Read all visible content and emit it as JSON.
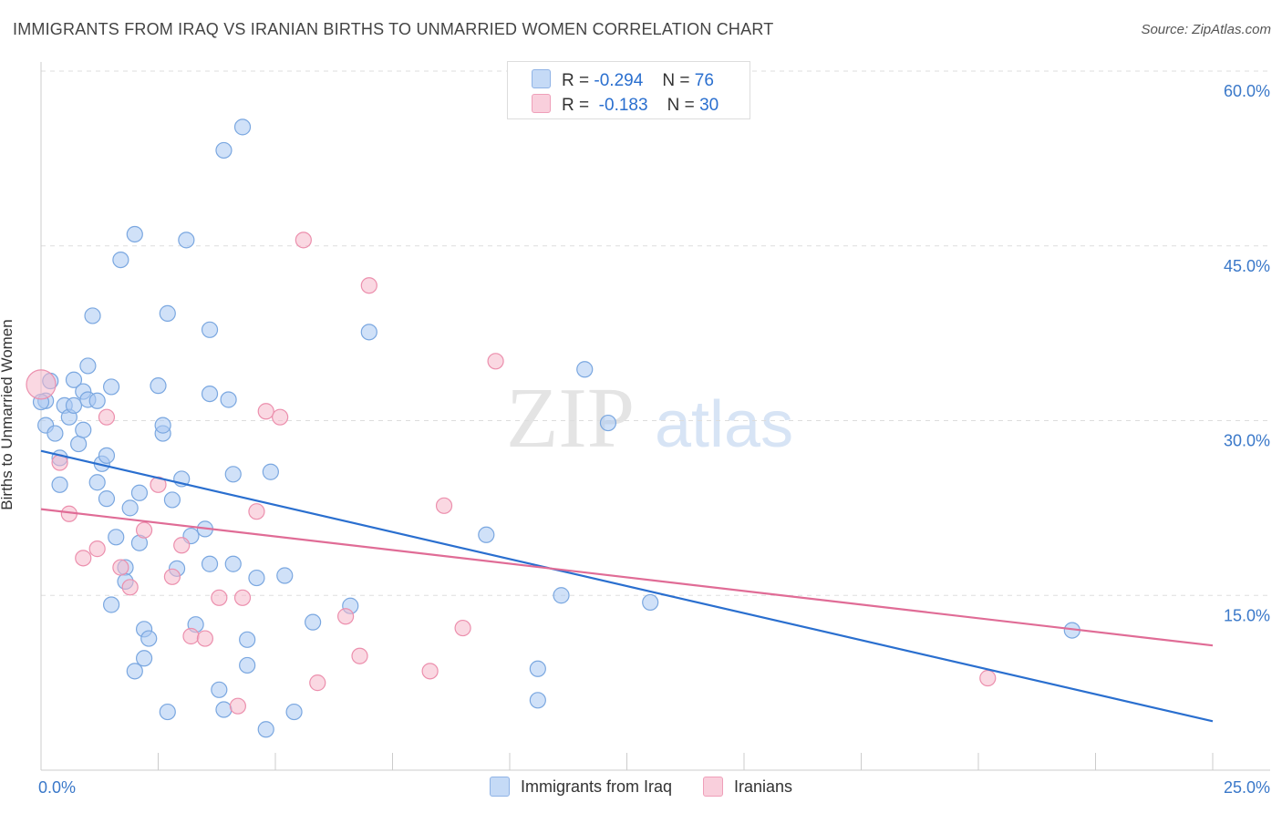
{
  "title": "IMMIGRANTS FROM IRAQ VS IRANIAN BIRTHS TO UNMARRIED WOMEN CORRELATION CHART",
  "source": "Source: ZipAtlas.com",
  "watermark": {
    "zip": "ZIP",
    "atlas": "atlas"
  },
  "legend": {
    "r_label": "R =",
    "n_label": "N =",
    "items": [
      {
        "r": "-0.294",
        "n": "76",
        "color": "#a9c8f2"
      },
      {
        "r": "-0.183",
        "n": "30",
        "color": "#f6b8cb"
      }
    ]
  },
  "chart_data": {
    "type": "scatter",
    "title": "IMMIGRANTS FROM IRAQ VS IRANIAN BIRTHS TO UNMARRIED WOMEN CORRELATION CHART",
    "xlabel": "",
    "ylabel": "Births to Unmarried Women",
    "xlim": [
      0,
      25
    ],
    "ylim": [
      0,
      60
    ],
    "x_tick_labels": [
      "0.0%",
      "25.0%"
    ],
    "y_ticks": [
      15,
      30,
      45,
      60
    ],
    "y_tick_labels": [
      "15.0%",
      "30.0%",
      "45.0%",
      "60.0%"
    ],
    "grid": "horizontal dashed",
    "legend_position": "top-center",
    "series": [
      {
        "name": "Immigrants from Iraq",
        "color": "#a9c8f2",
        "stroke": "#7aa7e0",
        "trend_color": "#2a6fcf",
        "trend": {
          "x": [
            0,
            25
          ],
          "y": [
            27.4,
            4.2
          ]
        },
        "points": [
          [
            0.1,
            29.6
          ],
          [
            0.1,
            31.7
          ],
          [
            0.2,
            33.4
          ],
          [
            0.3,
            28.9
          ],
          [
            0.4,
            24.5
          ],
          [
            0.4,
            26.8
          ],
          [
            0.5,
            31.3
          ],
          [
            0.6,
            30.3
          ],
          [
            0.7,
            31.3
          ],
          [
            0.7,
            33.5
          ],
          [
            0.8,
            28.0
          ],
          [
            0.9,
            29.2
          ],
          [
            0.9,
            32.5
          ],
          [
            1.0,
            31.8
          ],
          [
            1.0,
            34.7
          ],
          [
            1.1,
            39.0
          ],
          [
            1.2,
            31.7
          ],
          [
            1.2,
            24.7
          ],
          [
            1.3,
            26.3
          ],
          [
            1.4,
            27.0
          ],
          [
            1.4,
            23.3
          ],
          [
            1.5,
            32.9
          ],
          [
            1.5,
            14.2
          ],
          [
            1.6,
            20.0
          ],
          [
            1.7,
            43.8
          ],
          [
            1.8,
            17.4
          ],
          [
            1.8,
            16.2
          ],
          [
            1.9,
            22.5
          ],
          [
            2.0,
            46.0
          ],
          [
            2.0,
            8.5
          ],
          [
            2.1,
            23.8
          ],
          [
            2.1,
            19.5
          ],
          [
            2.2,
            12.1
          ],
          [
            2.2,
            9.6
          ],
          [
            2.3,
            11.3
          ],
          [
            2.5,
            33.0
          ],
          [
            2.6,
            28.9
          ],
          [
            2.6,
            29.6
          ],
          [
            2.7,
            39.2
          ],
          [
            2.7,
            5.0
          ],
          [
            2.8,
            23.2
          ],
          [
            2.9,
            17.3
          ],
          [
            3.0,
            25.0
          ],
          [
            3.1,
            45.5
          ],
          [
            3.2,
            20.1
          ],
          [
            3.3,
            12.5
          ],
          [
            3.5,
            20.7
          ],
          [
            3.6,
            32.3
          ],
          [
            3.6,
            37.8
          ],
          [
            3.6,
            17.7
          ],
          [
            3.8,
            6.9
          ],
          [
            3.9,
            5.2
          ],
          [
            3.9,
            53.2
          ],
          [
            4.0,
            31.8
          ],
          [
            4.1,
            25.4
          ],
          [
            4.1,
            17.7
          ],
          [
            4.3,
            55.2
          ],
          [
            4.4,
            11.2
          ],
          [
            4.4,
            9.0
          ],
          [
            4.6,
            16.5
          ],
          [
            4.8,
            3.5
          ],
          [
            4.9,
            25.6
          ],
          [
            5.2,
            16.7
          ],
          [
            5.4,
            5.0
          ],
          [
            5.8,
            12.7
          ],
          [
            6.6,
            14.1
          ],
          [
            7.0,
            37.6
          ],
          [
            9.5,
            20.2
          ],
          [
            10.6,
            6.0
          ],
          [
            10.6,
            8.7
          ],
          [
            11.1,
            15.0
          ],
          [
            11.6,
            34.4
          ],
          [
            12.1,
            29.8
          ],
          [
            13.0,
            14.4
          ],
          [
            22.0,
            12.0
          ],
          [
            0.0,
            31.6
          ]
        ]
      },
      {
        "name": "Iranians",
        "color": "#f6b8cb",
        "stroke": "#ec8fad",
        "trend_color": "#e06c96",
        "trend": {
          "x": [
            0,
            25
          ],
          "y": [
            22.4,
            10.7
          ]
        },
        "points": [
          [
            0.0,
            33.1
          ],
          [
            0.4,
            26.4
          ],
          [
            0.6,
            22.0
          ],
          [
            0.9,
            18.2
          ],
          [
            1.2,
            19.0
          ],
          [
            1.4,
            30.3
          ],
          [
            1.7,
            17.4
          ],
          [
            1.9,
            15.7
          ],
          [
            2.2,
            20.6
          ],
          [
            2.5,
            24.5
          ],
          [
            2.8,
            16.6
          ],
          [
            3.0,
            19.3
          ],
          [
            3.2,
            11.5
          ],
          [
            3.5,
            11.3
          ],
          [
            3.8,
            14.8
          ],
          [
            4.2,
            5.5
          ],
          [
            4.3,
            14.8
          ],
          [
            4.6,
            22.2
          ],
          [
            4.8,
            30.8
          ],
          [
            5.1,
            30.3
          ],
          [
            5.6,
            45.5
          ],
          [
            5.9,
            7.5
          ],
          [
            6.5,
            13.2
          ],
          [
            6.8,
            9.8
          ],
          [
            7.0,
            41.6
          ],
          [
            8.3,
            8.5
          ],
          [
            8.6,
            22.7
          ],
          [
            9.0,
            12.2
          ],
          [
            9.7,
            35.1
          ],
          [
            20.2,
            7.9
          ]
        ]
      }
    ]
  }
}
